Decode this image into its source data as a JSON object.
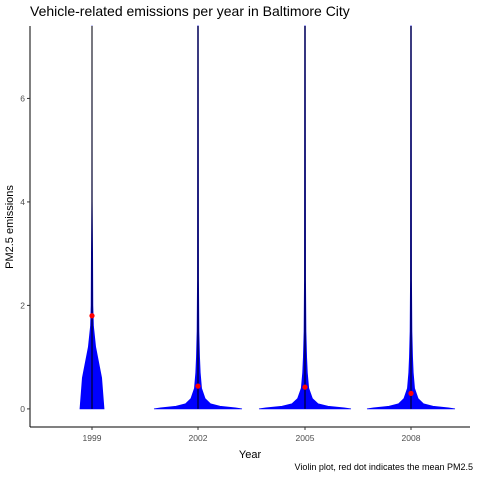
{
  "chart_data": {
    "type": "violin",
    "title": "Vehicle-related emissions per year in Baltimore City",
    "caption": "Violin plot, red dot indicates the mean PM2.5",
    "xlabel": "Year",
    "ylabel": "PM2.5 emissions",
    "categories": [
      "1999",
      "2002",
      "2005",
      "2008"
    ],
    "y_ticks": [
      0,
      2,
      4,
      6
    ],
    "ylim": [
      -0.35,
      7.4
    ],
    "grid": false,
    "fill_color": "#0000ff",
    "mean_color": "#ff0000",
    "series": [
      {
        "category": "1999",
        "mean": 1.8,
        "max": 7.4
      },
      {
        "category": "2002",
        "mean": 0.44,
        "max": 7.4
      },
      {
        "category": "2005",
        "mean": 0.42,
        "max": 7.4
      },
      {
        "category": "2008",
        "mean": 0.3,
        "max": 7.4
      }
    ]
  }
}
